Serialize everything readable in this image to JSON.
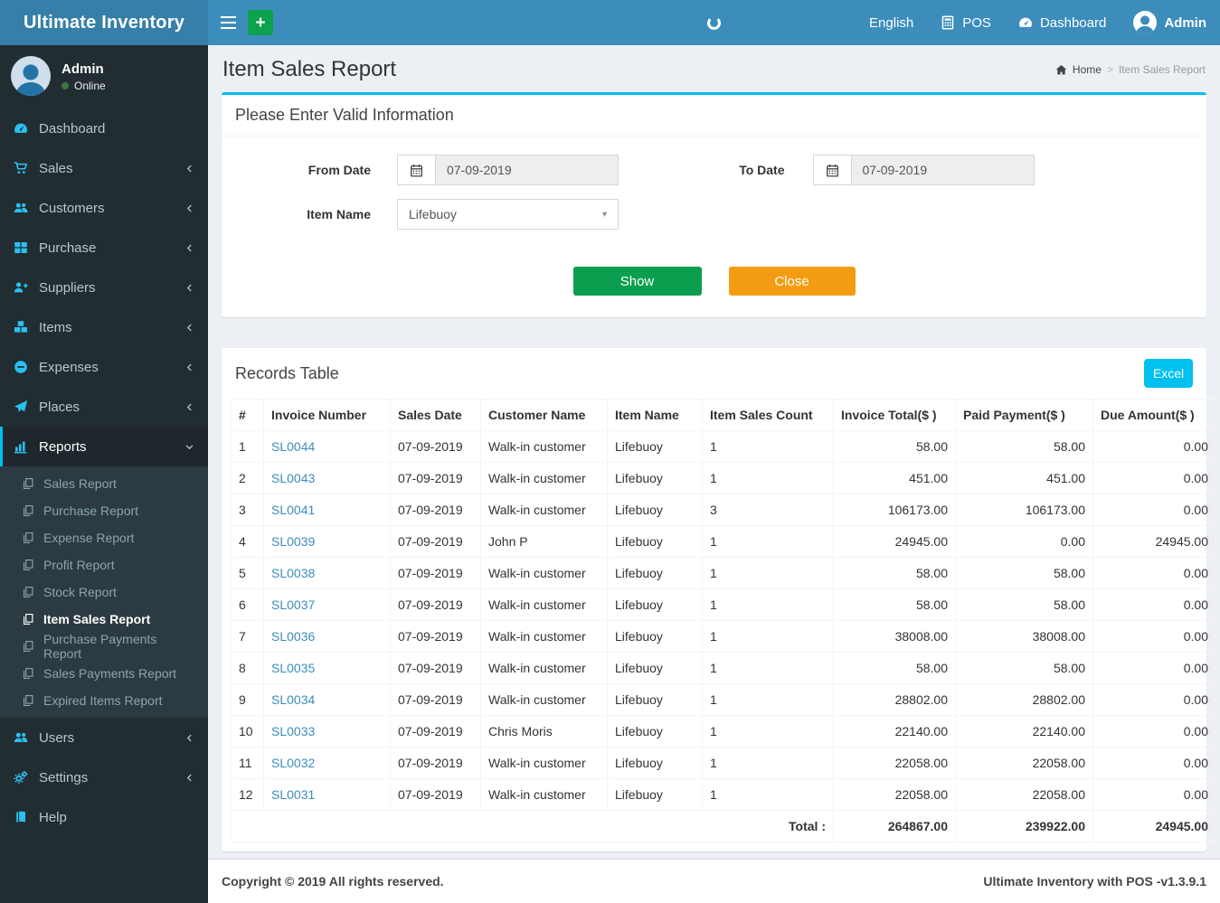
{
  "navbar": {
    "brand": "Ultimate Inventory",
    "language": "English",
    "pos": "POS",
    "dashboard": "Dashboard",
    "user": "Admin"
  },
  "sidebar": {
    "user": {
      "name": "Admin",
      "status": "Online"
    },
    "items": [
      {
        "label": "Dashboard",
        "icon": "tachometer",
        "chevron": false
      },
      {
        "label": "Sales",
        "icon": "cart",
        "chevron": true
      },
      {
        "label": "Customers",
        "icon": "users",
        "chevron": true
      },
      {
        "label": "Purchase",
        "icon": "grid",
        "chevron": true
      },
      {
        "label": "Suppliers",
        "icon": "user-plus",
        "chevron": true
      },
      {
        "label": "Items",
        "icon": "cubes",
        "chevron": true
      },
      {
        "label": "Expenses",
        "icon": "minus-circle",
        "chevron": true
      },
      {
        "label": "Places",
        "icon": "paper-plane",
        "chevron": true
      },
      {
        "label": "Reports",
        "icon": "bar-chart",
        "chevron": true,
        "active": true,
        "submenu": [
          {
            "label": "Sales Report"
          },
          {
            "label": "Purchase Report"
          },
          {
            "label": "Expense Report"
          },
          {
            "label": "Profit Report"
          },
          {
            "label": "Stock Report"
          },
          {
            "label": "Item Sales Report",
            "active": true
          },
          {
            "label": "Purchase Payments Report"
          },
          {
            "label": "Sales Payments Report"
          },
          {
            "label": "Expired Items Report"
          }
        ]
      },
      {
        "label": "Users",
        "icon": "users",
        "chevron": true
      },
      {
        "label": "Settings",
        "icon": "gears",
        "chevron": true
      },
      {
        "label": "Help",
        "icon": "book",
        "chevron": false
      }
    ]
  },
  "page": {
    "title": "Item Sales Report",
    "breadcrumb_home": "Home",
    "breadcrumb_separator": ">",
    "breadcrumb_current": "Item Sales Report"
  },
  "filter": {
    "heading": "Please Enter Valid Information",
    "from_date": {
      "label": "From Date",
      "value": "07-09-2019"
    },
    "to_date": {
      "label": "To Date",
      "value": "07-09-2019"
    },
    "item_name": {
      "label": "Item Name",
      "value": "Lifebuoy"
    },
    "show_label": "Show",
    "close_label": "Close"
  },
  "records": {
    "heading": "Records Table",
    "excel_label": "Excel",
    "columns": [
      "#",
      "Invoice Number",
      "Sales Date",
      "Customer Name",
      "Item Name",
      "Item Sales Count",
      "Invoice Total($ )",
      "Paid Payment($ )",
      "Due Amount($ )"
    ],
    "rows": [
      {
        "n": "1",
        "invoice": "SL0044",
        "date": "07-09-2019",
        "customer": "Walk-in customer",
        "item": "Lifebuoy",
        "count": "1",
        "total": "58.00",
        "paid": "58.00",
        "due": "0.00"
      },
      {
        "n": "2",
        "invoice": "SL0043",
        "date": "07-09-2019",
        "customer": "Walk-in customer",
        "item": "Lifebuoy",
        "count": "1",
        "total": "451.00",
        "paid": "451.00",
        "due": "0.00"
      },
      {
        "n": "3",
        "invoice": "SL0041",
        "date": "07-09-2019",
        "customer": "Walk-in customer",
        "item": "Lifebuoy",
        "count": "3",
        "total": "106173.00",
        "paid": "106173.00",
        "due": "0.00"
      },
      {
        "n": "4",
        "invoice": "SL0039",
        "date": "07-09-2019",
        "customer": "John P",
        "item": "Lifebuoy",
        "count": "1",
        "total": "24945.00",
        "paid": "0.00",
        "due": "24945.00"
      },
      {
        "n": "5",
        "invoice": "SL0038",
        "date": "07-09-2019",
        "customer": "Walk-in customer",
        "item": "Lifebuoy",
        "count": "1",
        "total": "58.00",
        "paid": "58.00",
        "due": "0.00"
      },
      {
        "n": "6",
        "invoice": "SL0037",
        "date": "07-09-2019",
        "customer": "Walk-in customer",
        "item": "Lifebuoy",
        "count": "1",
        "total": "58.00",
        "paid": "58.00",
        "due": "0.00"
      },
      {
        "n": "7",
        "invoice": "SL0036",
        "date": "07-09-2019",
        "customer": "Walk-in customer",
        "item": "Lifebuoy",
        "count": "1",
        "total": "38008.00",
        "paid": "38008.00",
        "due": "0.00"
      },
      {
        "n": "8",
        "invoice": "SL0035",
        "date": "07-09-2019",
        "customer": "Walk-in customer",
        "item": "Lifebuoy",
        "count": "1",
        "total": "58.00",
        "paid": "58.00",
        "due": "0.00"
      },
      {
        "n": "9",
        "invoice": "SL0034",
        "date": "07-09-2019",
        "customer": "Walk-in customer",
        "item": "Lifebuoy",
        "count": "1",
        "total": "28802.00",
        "paid": "28802.00",
        "due": "0.00"
      },
      {
        "n": "10",
        "invoice": "SL0033",
        "date": "07-09-2019",
        "customer": "Chris Moris",
        "item": "Lifebuoy",
        "count": "1",
        "total": "22140.00",
        "paid": "22140.00",
        "due": "0.00"
      },
      {
        "n": "11",
        "invoice": "SL0032",
        "date": "07-09-2019",
        "customer": "Walk-in customer",
        "item": "Lifebuoy",
        "count": "1",
        "total": "22058.00",
        "paid": "22058.00",
        "due": "0.00"
      },
      {
        "n": "12",
        "invoice": "SL0031",
        "date": "07-09-2019",
        "customer": "Walk-in customer",
        "item": "Lifebuoy",
        "count": "1",
        "total": "22058.00",
        "paid": "22058.00",
        "due": "0.00"
      }
    ],
    "total": {
      "label": "Total :",
      "invoice_total": "264867.00",
      "paid_payment": "239922.00",
      "due_amount": "24945.00"
    }
  },
  "footer": {
    "left": "Copyright © 2019 All rights reserved.",
    "right": "Ultimate Inventory with POS -v1.3.9.1"
  },
  "colors": {
    "navbar_blue": "#3c8dbc",
    "logo_blue": "#367fa9",
    "sidebar_dark": "#222d32",
    "submenu_dark": "#2c3b41",
    "accent_cyan": "#00c0ef",
    "sidebar_icon_cyan": "#29c1f1",
    "button_green": "#0a9e4e",
    "button_orange": "#f39c12",
    "link_blue": "#3c8dbc",
    "online_dot_green": "#3c763d"
  }
}
